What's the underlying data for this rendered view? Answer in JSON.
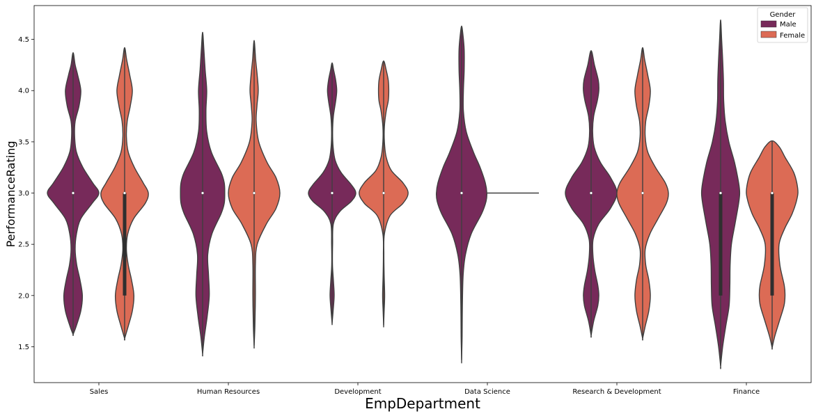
{
  "chart_data": {
    "type": "violin",
    "xlabel": "EmpDepartment",
    "ylabel": "PerformanceRating",
    "ylim": [
      1.15,
      4.83
    ],
    "yticks": [
      1.5,
      2.0,
      2.5,
      3.0,
      3.5,
      4.0,
      4.5
    ],
    "ytick_labels": [
      "1.5",
      "2.0",
      "2.5",
      "3.0",
      "3.5",
      "4.0",
      "4.5"
    ],
    "grid": false,
    "legend": {
      "title": "Gender",
      "placement": "top-right"
    },
    "categories": [
      "Sales",
      "Human Resources",
      "Development",
      "Data Science",
      "Research & Development",
      "Finance"
    ],
    "series": [
      {
        "name": "Male",
        "color": "#772a5a"
      },
      {
        "name": "Female",
        "color": "#dc6b55"
      }
    ],
    "violins": [
      {
        "category": "Sales",
        "series": "Male",
        "min": 1.62,
        "max": 4.37,
        "q1": 3.0,
        "median": 3.0,
        "q3": 3.0,
        "density": [
          [
            1.62,
            0.0
          ],
          [
            1.7,
            0.12
          ],
          [
            1.85,
            0.3
          ],
          [
            2.0,
            0.36
          ],
          [
            2.15,
            0.27
          ],
          [
            2.3,
            0.14
          ],
          [
            2.45,
            0.08
          ],
          [
            2.6,
            0.13
          ],
          [
            2.75,
            0.3
          ],
          [
            2.9,
            0.74
          ],
          [
            3.0,
            1.0
          ],
          [
            3.1,
            0.76
          ],
          [
            3.25,
            0.38
          ],
          [
            3.4,
            0.13
          ],
          [
            3.55,
            0.06
          ],
          [
            3.7,
            0.08
          ],
          [
            3.85,
            0.23
          ],
          [
            4.0,
            0.3
          ],
          [
            4.15,
            0.18
          ],
          [
            4.25,
            0.08
          ],
          [
            4.37,
            0.0
          ]
        ]
      },
      {
        "category": "Sales",
        "series": "Female",
        "min": 1.58,
        "max": 4.42,
        "q1": 2.0,
        "median": 3.0,
        "q3": 3.0,
        "density": [
          [
            1.58,
            0.0
          ],
          [
            1.7,
            0.14
          ],
          [
            1.85,
            0.3
          ],
          [
            2.0,
            0.36
          ],
          [
            2.15,
            0.27
          ],
          [
            2.3,
            0.14
          ],
          [
            2.45,
            0.07
          ],
          [
            2.6,
            0.12
          ],
          [
            2.75,
            0.35
          ],
          [
            2.9,
            0.8
          ],
          [
            3.0,
            0.92
          ],
          [
            3.1,
            0.72
          ],
          [
            3.25,
            0.38
          ],
          [
            3.4,
            0.14
          ],
          [
            3.55,
            0.07
          ],
          [
            3.7,
            0.1
          ],
          [
            3.85,
            0.22
          ],
          [
            4.0,
            0.3
          ],
          [
            4.15,
            0.2
          ],
          [
            4.3,
            0.08
          ],
          [
            4.42,
            0.0
          ]
        ]
      },
      {
        "category": "Human Resources",
        "series": "Male",
        "min": 1.43,
        "max": 4.57,
        "q1": 3.0,
        "median": 3.0,
        "q3": 3.0,
        "density": [
          [
            1.43,
            0.0
          ],
          [
            1.6,
            0.07
          ],
          [
            1.8,
            0.18
          ],
          [
            2.0,
            0.26
          ],
          [
            2.2,
            0.23
          ],
          [
            2.4,
            0.2
          ],
          [
            2.6,
            0.36
          ],
          [
            2.8,
            0.72
          ],
          [
            2.9,
            0.84
          ],
          [
            3.0,
            0.86
          ],
          [
            3.1,
            0.84
          ],
          [
            3.2,
            0.72
          ],
          [
            3.4,
            0.34
          ],
          [
            3.6,
            0.16
          ],
          [
            3.8,
            0.13
          ],
          [
            4.0,
            0.16
          ],
          [
            4.2,
            0.1
          ],
          [
            4.4,
            0.05
          ],
          [
            4.57,
            0.0
          ]
        ]
      },
      {
        "category": "Human Resources",
        "series": "Female",
        "min": 1.51,
        "max": 4.49,
        "q1": 3.0,
        "median": 3.0,
        "q3": 3.0,
        "density": [
          [
            1.51,
            0.0
          ],
          [
            1.7,
            0.03
          ],
          [
            2.0,
            0.05
          ],
          [
            2.3,
            0.05
          ],
          [
            2.5,
            0.12
          ],
          [
            2.7,
            0.48
          ],
          [
            2.85,
            0.85
          ],
          [
            3.0,
            1.0
          ],
          [
            3.15,
            0.85
          ],
          [
            3.3,
            0.5
          ],
          [
            3.5,
            0.18
          ],
          [
            3.7,
            0.08
          ],
          [
            3.85,
            0.11
          ],
          [
            4.0,
            0.16
          ],
          [
            4.15,
            0.12
          ],
          [
            4.3,
            0.06
          ],
          [
            4.49,
            0.0
          ]
        ]
      },
      {
        "category": "Development",
        "series": "Male",
        "min": 1.73,
        "max": 4.27,
        "q1": 3.0,
        "median": 3.0,
        "q3": 3.0,
        "density": [
          [
            1.73,
            0.0
          ],
          [
            1.85,
            0.04
          ],
          [
            2.0,
            0.08
          ],
          [
            2.15,
            0.05
          ],
          [
            2.3,
            0.015
          ],
          [
            2.5,
            0.02
          ],
          [
            2.7,
            0.05
          ],
          [
            2.82,
            0.3
          ],
          [
            2.92,
            0.75
          ],
          [
            3.0,
            0.92
          ],
          [
            3.08,
            0.75
          ],
          [
            3.2,
            0.35
          ],
          [
            3.32,
            0.12
          ],
          [
            3.45,
            0.04
          ],
          [
            3.6,
            0.02
          ],
          [
            3.75,
            0.05
          ],
          [
            3.9,
            0.14
          ],
          [
            4.0,
            0.18
          ],
          [
            4.1,
            0.14
          ],
          [
            4.2,
            0.06
          ],
          [
            4.27,
            0.0
          ]
        ]
      },
      {
        "category": "Development",
        "series": "Female",
        "min": 1.71,
        "max": 4.29,
        "q1": 3.0,
        "median": 3.0,
        "q3": 3.0,
        "density": [
          [
            1.71,
            0.0
          ],
          [
            1.85,
            0.02
          ],
          [
            2.0,
            0.04
          ],
          [
            2.2,
            0.02
          ],
          [
            2.4,
            0.01
          ],
          [
            2.6,
            0.03
          ],
          [
            2.78,
            0.25
          ],
          [
            2.9,
            0.75
          ],
          [
            3.0,
            0.95
          ],
          [
            3.1,
            0.75
          ],
          [
            3.22,
            0.3
          ],
          [
            3.35,
            0.1
          ],
          [
            3.5,
            0.03
          ],
          [
            3.65,
            0.03
          ],
          [
            3.8,
            0.1
          ],
          [
            3.9,
            0.18
          ],
          [
            4.0,
            0.2
          ],
          [
            4.1,
            0.18
          ],
          [
            4.2,
            0.1
          ],
          [
            4.29,
            0.0
          ]
        ]
      },
      {
        "category": "Data Science",
        "series": "Male",
        "min": 1.37,
        "max": 4.63,
        "q1": 3.0,
        "median": 3.0,
        "q3": 3.0,
        "density": [
          [
            1.37,
            0.0
          ],
          [
            1.6,
            0.02
          ],
          [
            1.9,
            0.03
          ],
          [
            2.2,
            0.06
          ],
          [
            2.4,
            0.15
          ],
          [
            2.6,
            0.37
          ],
          [
            2.8,
            0.78
          ],
          [
            2.92,
            0.95
          ],
          [
            3.0,
            0.98
          ],
          [
            3.1,
            0.92
          ],
          [
            3.25,
            0.72
          ],
          [
            3.4,
            0.46
          ],
          [
            3.6,
            0.18
          ],
          [
            3.8,
            0.07
          ],
          [
            4.0,
            0.07
          ],
          [
            4.2,
            0.1
          ],
          [
            4.4,
            0.1
          ],
          [
            4.55,
            0.05
          ],
          [
            4.63,
            0.0
          ]
        ]
      },
      {
        "category": "Data Science",
        "series": "Female",
        "min": 3.0,
        "max": 3.0,
        "q1": 3.0,
        "median": 3.0,
        "q3": 3.0,
        "density": []
      },
      {
        "category": "Research & Development",
        "series": "Male",
        "min": 1.61,
        "max": 4.39,
        "q1": 3.0,
        "median": 3.0,
        "q3": 3.0,
        "density": [
          [
            1.61,
            0.0
          ],
          [
            1.75,
            0.1
          ],
          [
            1.9,
            0.26
          ],
          [
            2.0,
            0.3
          ],
          [
            2.1,
            0.26
          ],
          [
            2.25,
            0.14
          ],
          [
            2.4,
            0.07
          ],
          [
            2.55,
            0.08
          ],
          [
            2.7,
            0.3
          ],
          [
            2.85,
            0.75
          ],
          [
            3.0,
            1.0
          ],
          [
            3.15,
            0.76
          ],
          [
            3.3,
            0.36
          ],
          [
            3.45,
            0.12
          ],
          [
            3.6,
            0.06
          ],
          [
            3.75,
            0.1
          ],
          [
            3.9,
            0.24
          ],
          [
            4.0,
            0.3
          ],
          [
            4.1,
            0.28
          ],
          [
            4.25,
            0.13
          ],
          [
            4.39,
            0.0
          ]
        ]
      },
      {
        "category": "Research & Development",
        "series": "Female",
        "min": 1.58,
        "max": 4.42,
        "q1": 3.0,
        "median": 3.0,
        "q3": 3.0,
        "density": [
          [
            1.58,
            0.0
          ],
          [
            1.7,
            0.1
          ],
          [
            1.85,
            0.24
          ],
          [
            2.0,
            0.3
          ],
          [
            2.15,
            0.24
          ],
          [
            2.3,
            0.12
          ],
          [
            2.45,
            0.1
          ],
          [
            2.6,
            0.28
          ],
          [
            2.75,
            0.6
          ],
          [
            2.9,
            0.92
          ],
          [
            3.0,
            1.0
          ],
          [
            3.1,
            0.88
          ],
          [
            3.25,
            0.5
          ],
          [
            3.4,
            0.2
          ],
          [
            3.55,
            0.1
          ],
          [
            3.7,
            0.12
          ],
          [
            3.85,
            0.24
          ],
          [
            4.0,
            0.3
          ],
          [
            4.15,
            0.2
          ],
          [
            4.3,
            0.08
          ],
          [
            4.42,
            0.0
          ]
        ]
      },
      {
        "category": "Finance",
        "series": "Male",
        "min": 1.31,
        "max": 4.69,
        "q1": 2.0,
        "median": 3.0,
        "q3": 3.0,
        "density": [
          [
            1.31,
            0.0
          ],
          [
            1.5,
            0.08
          ],
          [
            1.7,
            0.2
          ],
          [
            1.9,
            0.33
          ],
          [
            2.1,
            0.36
          ],
          [
            2.3,
            0.37
          ],
          [
            2.5,
            0.42
          ],
          [
            2.7,
            0.56
          ],
          [
            2.9,
            0.7
          ],
          [
            3.0,
            0.74
          ],
          [
            3.1,
            0.7
          ],
          [
            3.3,
            0.54
          ],
          [
            3.5,
            0.32
          ],
          [
            3.7,
            0.18
          ],
          [
            3.9,
            0.12
          ],
          [
            4.1,
            0.11
          ],
          [
            4.3,
            0.08
          ],
          [
            4.5,
            0.04
          ],
          [
            4.69,
            0.0
          ]
        ]
      },
      {
        "category": "Finance",
        "series": "Female",
        "min": 1.49,
        "max": 3.51,
        "q1": 2.0,
        "median": 3.0,
        "q3": 3.0,
        "density": [
          [
            1.49,
            0.0
          ],
          [
            1.6,
            0.1
          ],
          [
            1.75,
            0.28
          ],
          [
            1.9,
            0.46
          ],
          [
            2.0,
            0.5
          ],
          [
            2.1,
            0.47
          ],
          [
            2.3,
            0.3
          ],
          [
            2.5,
            0.27
          ],
          [
            2.65,
            0.48
          ],
          [
            2.8,
            0.78
          ],
          [
            2.95,
            0.97
          ],
          [
            3.05,
            0.99
          ],
          [
            3.2,
            0.84
          ],
          [
            3.35,
            0.5
          ],
          [
            3.45,
            0.28
          ],
          [
            3.51,
            0.0
          ]
        ]
      }
    ]
  }
}
